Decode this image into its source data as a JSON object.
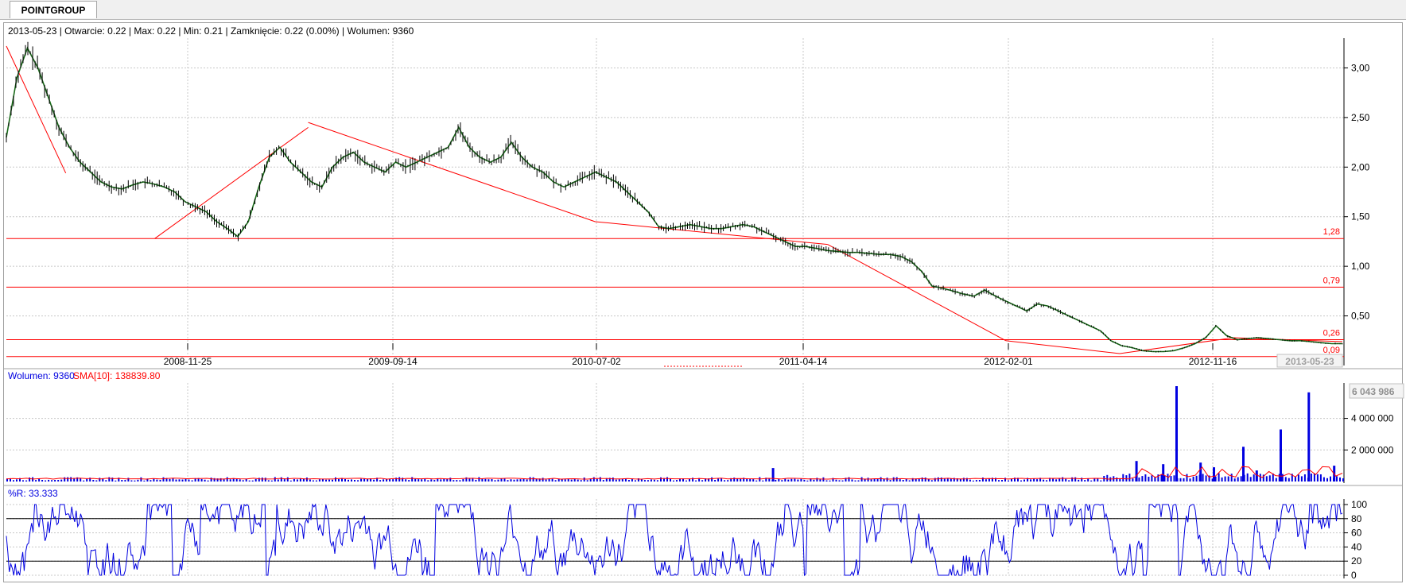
{
  "tab": {
    "label": "POINTGROUP"
  },
  "info_bar": "2013-05-23 | Otwarcie: 0.22 | Max: 0.22 | Min: 0.21 | Zamknięcie: 0.22 (0.00%)  | Wolumen: 9360",
  "volume_legend": {
    "volume_text": "Wolumen: 9360",
    "sma_text": "SMA[10]: 138839.80"
  },
  "wr_legend": "%R: 33.333",
  "colors": {
    "price": "#1a6b1a",
    "trend": "#ff0000",
    "volume": "#0000e0",
    "sma": "#ff0000",
    "wr": "#0000e0",
    "grid": "#c8c8c8"
  },
  "chart_data": [
    {
      "type": "line",
      "x_labels": [
        "2008-11-25",
        "2009-09-14",
        "2010-07-02",
        "2011-04-14",
        "2012-02-01",
        "2012-11-16"
      ],
      "cursor_label": "2013-05-23",
      "yticks": [
        "3,00",
        "2,50",
        "2,00",
        "1,50",
        "1,00",
        "0,50"
      ],
      "ylim": [
        0,
        3.3
      ],
      "series": [
        {
          "values": [
            2.3,
            2.9,
            3.2,
            3.0,
            2.7,
            2.4,
            2.2,
            2.05,
            1.95,
            1.85,
            1.8,
            1.78,
            1.82,
            1.85,
            1.83,
            1.8,
            1.75,
            1.65,
            1.6,
            1.55,
            1.45,
            1.38,
            1.3,
            1.45,
            1.8,
            2.1,
            2.2,
            2.05,
            1.95,
            1.85,
            1.8,
            2.0,
            2.1,
            2.15,
            2.05,
            2.0,
            1.95,
            2.05,
            2.0,
            2.05,
            2.1,
            2.15,
            2.2,
            2.4,
            2.2,
            2.1,
            2.05,
            2.1,
            2.25,
            2.1,
            2.0,
            1.95,
            1.85,
            1.8,
            1.85,
            1.9,
            1.95,
            1.9,
            1.85,
            1.75,
            1.65,
            1.55,
            1.4,
            1.38,
            1.4,
            1.42,
            1.4,
            1.38,
            1.38,
            1.4,
            1.42,
            1.4,
            1.35,
            1.3,
            1.25,
            1.2,
            1.2,
            1.18,
            1.16,
            1.15,
            1.14,
            1.14,
            1.13,
            1.12,
            1.12,
            1.1,
            1.05,
            0.95,
            0.8,
            0.78,
            0.75,
            0.72,
            0.7,
            0.76,
            0.7,
            0.65,
            0.6,
            0.55,
            0.62,
            0.6,
            0.55,
            0.5,
            0.45,
            0.4,
            0.35,
            0.25,
            0.2,
            0.18,
            0.15,
            0.14,
            0.14,
            0.15,
            0.18,
            0.22,
            0.28,
            0.4,
            0.3,
            0.26,
            0.27,
            0.28,
            0.27,
            0.26,
            0.25,
            0.25,
            0.24,
            0.23,
            0.22,
            0.22
          ]
        }
      ],
      "trend_segments": [
        [
          [
            0,
            3.22
          ],
          [
            12,
            1.94
          ]
        ],
        [
          [
            30,
            1.28
          ],
          [
            61,
            2.4
          ]
        ],
        [
          [
            61,
            2.45
          ],
          [
            119,
            1.45
          ]
        ],
        [
          [
            119,
            1.45
          ],
          [
            166,
            1.22
          ]
        ],
        [
          [
            166,
            1.22
          ],
          [
            202,
            0.25
          ]
        ],
        [
          [
            202,
            0.25
          ],
          [
            225,
            0.12
          ]
        ],
        [
          [
            225,
            0.12
          ],
          [
            248,
            0.28
          ]
        ],
        [
          [
            248,
            0.28
          ],
          [
            270,
            0.24
          ]
        ]
      ],
      "hlines": [
        {
          "value": 1.28,
          "label": "1,28"
        },
        {
          "value": 0.79,
          "label": "0,79"
        },
        {
          "value": 0.26,
          "label": "0,26"
        },
        {
          "value": 0.09,
          "label": "0,09"
        }
      ]
    },
    {
      "type": "bar",
      "title": "Wolumen",
      "top_value_label": "6 043 986",
      "yticks": [
        "4 000 000",
        "2 000 000"
      ],
      "ylim": [
        0,
        6043986
      ],
      "spikes": [
        {
          "pos": 0.875,
          "value": 6043986
        },
        {
          "pos": 0.974,
          "value": 5650000
        },
        {
          "pos": 0.953,
          "value": 3300000
        },
        {
          "pos": 0.925,
          "value": 2200000
        },
        {
          "pos": 0.845,
          "value": 1300000
        },
        {
          "pos": 0.865,
          "value": 1100000
        },
        {
          "pos": 0.893,
          "value": 1200000
        },
        {
          "pos": 0.903,
          "value": 900000
        },
        {
          "pos": 0.935,
          "value": 700000
        },
        {
          "pos": 0.993,
          "value": 1000000
        },
        {
          "pos": 0.573,
          "value": 850000
        }
      ],
      "sma_value": 138839.8
    },
    {
      "type": "line",
      "title": "%R",
      "yticks": [
        "100",
        "80",
        "60",
        "40",
        "20",
        "0"
      ],
      "ylim": [
        0,
        100
      ],
      "hlines": [
        80,
        20
      ]
    }
  ]
}
